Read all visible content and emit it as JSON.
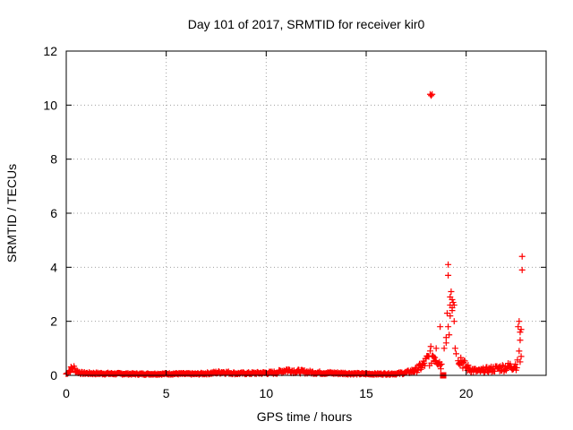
{
  "chart_data": {
    "type": "scatter",
    "title": "Day 101 of 2017, SRMTID for receiver kir0",
    "xlabel": "GPS time / hours",
    "ylabel": "SRMTID / TECUs",
    "xlim": [
      0,
      24
    ],
    "ylim": [
      0,
      12
    ],
    "xticks": [
      0,
      5,
      10,
      15,
      20
    ],
    "yticks": [
      0,
      2,
      4,
      6,
      8,
      10,
      12
    ],
    "grid": true,
    "legend": "none",
    "marker": "plus",
    "color": "#ff0000",
    "baseline_segments": [
      {
        "x": [
          0.0,
          0.2,
          0.35,
          0.5,
          0.8,
          1.5,
          2.5,
          3.5,
          4.5,
          5.5,
          6.5,
          7.2,
          7.8,
          8.5,
          9.5,
          10.5,
          11.0,
          11.5,
          12.5,
          13.5,
          14.5,
          15.5,
          16.5,
          17.0,
          17.5,
          17.8
        ],
        "y": [
          0.05,
          0.2,
          0.3,
          0.15,
          0.08,
          0.07,
          0.06,
          0.05,
          0.05,
          0.06,
          0.05,
          0.08,
          0.12,
          0.07,
          0.08,
          0.1,
          0.2,
          0.15,
          0.1,
          0.08,
          0.06,
          0.05,
          0.06,
          0.1,
          0.2,
          0.35
        ]
      },
      {
        "x": [
          17.8,
          18.0,
          18.2,
          18.4,
          18.6,
          18.8
        ],
        "y": [
          0.35,
          0.5,
          0.7,
          0.8,
          0.6,
          0.3
        ]
      },
      {
        "x": [
          19.6,
          19.8,
          20.0,
          20.3,
          20.6,
          21.0,
          21.5,
          22.0,
          22.3,
          22.6
        ],
        "y": [
          0.8,
          0.5,
          0.3,
          0.2,
          0.15,
          0.2,
          0.25,
          0.3,
          0.35,
          0.4
        ]
      }
    ],
    "peak_points": {
      "x": [
        18.2,
        18.25,
        18.3,
        18.5,
        18.7,
        18.9,
        19.0,
        19.05,
        19.1,
        19.1,
        19.15,
        19.2,
        19.2,
        19.25,
        19.3,
        19.3,
        19.35,
        19.4,
        19.45,
        19.5,
        19.0,
        19.1,
        19.2,
        19.3,
        19.4,
        22.6,
        22.65,
        22.7,
        22.7,
        22.75,
        22.75,
        22.8,
        22.8,
        22.7,
        22.65
      ],
      "y": [
        10.4,
        10.35,
        10.4,
        1.0,
        1.8,
        1.0,
        1.4,
        2.3,
        4.1,
        3.7,
        1.5,
        2.6,
        2.9,
        3.1,
        2.8,
        2.5,
        2.7,
        2.6,
        1.0,
        0.8,
        1.2,
        1.8,
        2.2,
        2.4,
        2.0,
        1.8,
        2.0,
        1.6,
        1.3,
        0.7,
        1.7,
        4.4,
        3.9,
        0.5,
        0.9
      ]
    },
    "square_points": {
      "x": [
        18.85
      ],
      "y": [
        0.0
      ]
    }
  }
}
